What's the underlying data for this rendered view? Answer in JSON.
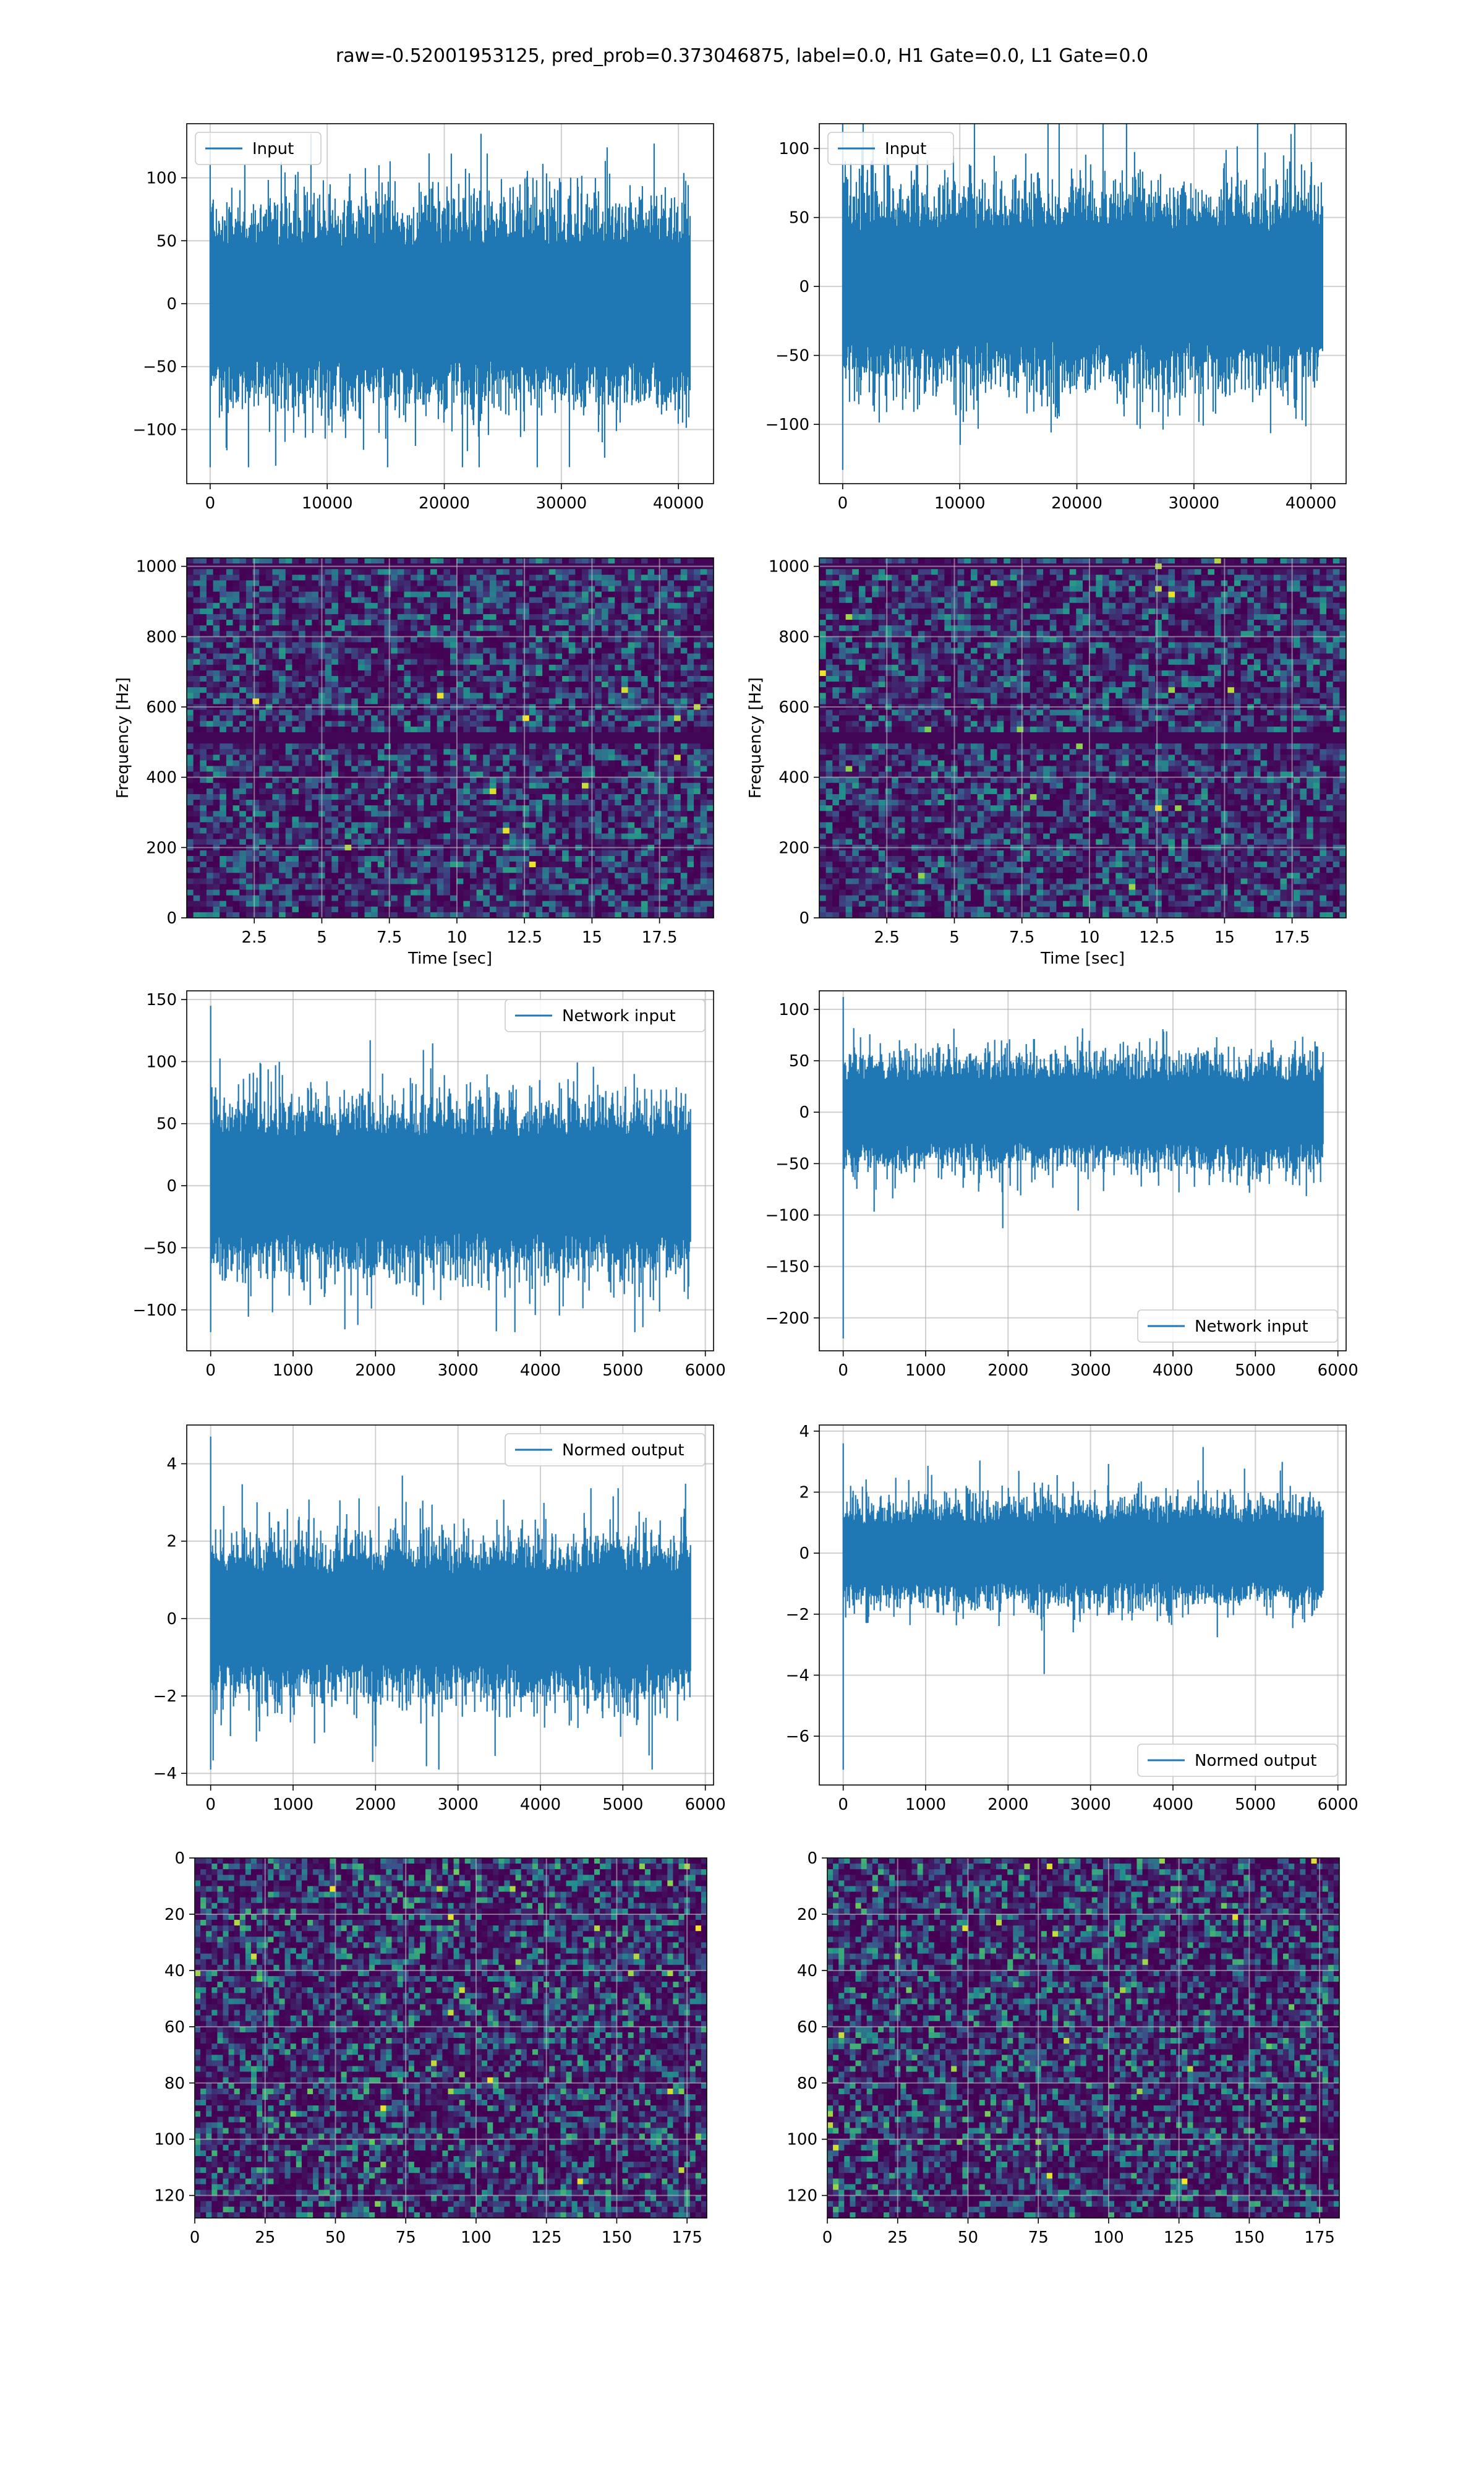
{
  "figure": {
    "title": "raw=-0.52001953125, pred_prob=0.373046875, label=0.0, H1 Gate=0.0, L1 Gate=0.0"
  },
  "colors": {
    "line": "#1f77b4",
    "grid": "#b0b0b0",
    "heat_low": "#440154",
    "heat_mid": "#31688e",
    "heat_high": "#35b779",
    "heat_peak": "#fde725"
  },
  "chart_data": [
    {
      "id": "input-h1",
      "type": "line",
      "legend": "Input",
      "legend_loc": "upper left",
      "xlim": [
        -2000,
        43000
      ],
      "ylim": [
        -143,
        143
      ],
      "xticks": [
        0,
        10000,
        20000,
        30000,
        40000
      ],
      "yticks": [
        -100,
        -50,
        0,
        50,
        100
      ],
      "x": [
        0,
        40960
      ],
      "noise_amplitude": 45,
      "y_peak_max": 135,
      "y_peak_min": -130,
      "xlabel": "",
      "ylabel": "",
      "grid": true
    },
    {
      "id": "input-l1",
      "type": "line",
      "legend": "Input",
      "legend_loc": "upper left",
      "xlim": [
        -2000,
        43000
      ],
      "ylim": [
        -143,
        118
      ],
      "xticks": [
        0,
        10000,
        20000,
        30000,
        40000
      ],
      "yticks": [
        -100,
        -50,
        0,
        50,
        100
      ],
      "x": [
        0,
        40960
      ],
      "noise_amplitude": 40,
      "y_peak_max": 120,
      "y_peak_min": -133,
      "xlabel": "",
      "ylabel": "",
      "grid": true
    },
    {
      "id": "spectrogram-h1",
      "type": "heatmap",
      "xlim": [
        0,
        19.5
      ],
      "ylim": [
        0,
        1024
      ],
      "xticks": [
        2.5,
        5.0,
        7.5,
        10.0,
        12.5,
        15.0,
        17.5
      ],
      "yticks": [
        0,
        200,
        400,
        600,
        800,
        1000
      ],
      "xlabel": "Time [sec]",
      "ylabel": "Frequency [Hz]",
      "grid": true,
      "dark_bands_hz": [
        512,
        1000
      ]
    },
    {
      "id": "spectrogram-l1",
      "type": "heatmap",
      "xlim": [
        0,
        19.5
      ],
      "ylim": [
        0,
        1024
      ],
      "xticks": [
        2.5,
        5.0,
        7.5,
        10.0,
        12.5,
        15.0,
        17.5
      ],
      "yticks": [
        0,
        200,
        400,
        600,
        800,
        1000
      ],
      "xlabel": "Time [sec]",
      "ylabel": "Frequency [Hz]",
      "grid": true,
      "dark_bands_hz": [
        512,
        1000
      ]
    },
    {
      "id": "network-input-h1",
      "type": "line",
      "legend": "Network input",
      "legend_loc": "upper right",
      "xlim": [
        -290,
        6100
      ],
      "ylim": [
        -133,
        157
      ],
      "xticks": [
        0,
        1000,
        2000,
        3000,
        4000,
        5000,
        6000
      ],
      "yticks": [
        -100,
        -50,
        0,
        50,
        100,
        150
      ],
      "x": [
        0,
        5820
      ],
      "noise_amplitude": 38,
      "y_peak_max": 145,
      "y_peak_min": -118,
      "xlabel": "",
      "ylabel": "",
      "grid": true
    },
    {
      "id": "network-input-l1",
      "type": "line",
      "legend": "Network input",
      "legend_loc": "lower right",
      "xlim": [
        -290,
        6100
      ],
      "ylim": [
        -232,
        118
      ],
      "xticks": [
        0,
        1000,
        2000,
        3000,
        4000,
        5000,
        6000
      ],
      "yticks": [
        -200,
        -150,
        -100,
        -50,
        0,
        50,
        100
      ],
      "x": [
        0,
        5820
      ],
      "noise_amplitude": 30,
      "y_peak_max": 112,
      "y_peak_min": -220,
      "xlabel": "",
      "ylabel": "",
      "grid": true
    },
    {
      "id": "normed-output-h1",
      "type": "line",
      "legend": "Normed output",
      "legend_loc": "upper right",
      "xlim": [
        -290,
        6100
      ],
      "ylim": [
        -4.3,
        5.0
      ],
      "xticks": [
        0,
        1000,
        2000,
        3000,
        4000,
        5000,
        6000
      ],
      "yticks": [
        -4,
        -2,
        0,
        2,
        4
      ],
      "x": [
        0,
        5820
      ],
      "noise_amplitude": 1.15,
      "y_peak_max": 4.7,
      "y_peak_min": -3.9,
      "xlabel": "",
      "ylabel": "",
      "grid": true
    },
    {
      "id": "normed-output-l1",
      "type": "line",
      "legend": "Normed output",
      "legend_loc": "lower right",
      "xlim": [
        -290,
        6100
      ],
      "ylim": [
        -7.6,
        4.2
      ],
      "xticks": [
        0,
        1000,
        2000,
        3000,
        4000,
        5000,
        6000
      ],
      "yticks": [
        -6,
        -4,
        -2,
        0,
        2,
        4
      ],
      "x": [
        0,
        5820
      ],
      "noise_amplitude": 0.95,
      "y_peak_max": 3.6,
      "y_peak_min": -7.1,
      "xlabel": "",
      "ylabel": "",
      "grid": true
    },
    {
      "id": "feature-map-h1",
      "type": "heatmap",
      "xlim": [
        0,
        182
      ],
      "ylim": [
        128,
        0
      ],
      "xticks": [
        0,
        25,
        50,
        75,
        100,
        125,
        150,
        175
      ],
      "yticks": [
        0,
        20,
        40,
        60,
        80,
        100,
        120
      ],
      "xlabel": "",
      "ylabel": "",
      "grid": true,
      "rows": 128,
      "cols": 182
    },
    {
      "id": "feature-map-l1",
      "type": "heatmap",
      "xlim": [
        0,
        182
      ],
      "ylim": [
        128,
        0
      ],
      "xticks": [
        0,
        25,
        50,
        75,
        100,
        125,
        150,
        175
      ],
      "yticks": [
        0,
        20,
        40,
        60,
        80,
        100,
        120
      ],
      "xlabel": "",
      "ylabel": "",
      "grid": true,
      "rows": 128,
      "cols": 182
    }
  ]
}
